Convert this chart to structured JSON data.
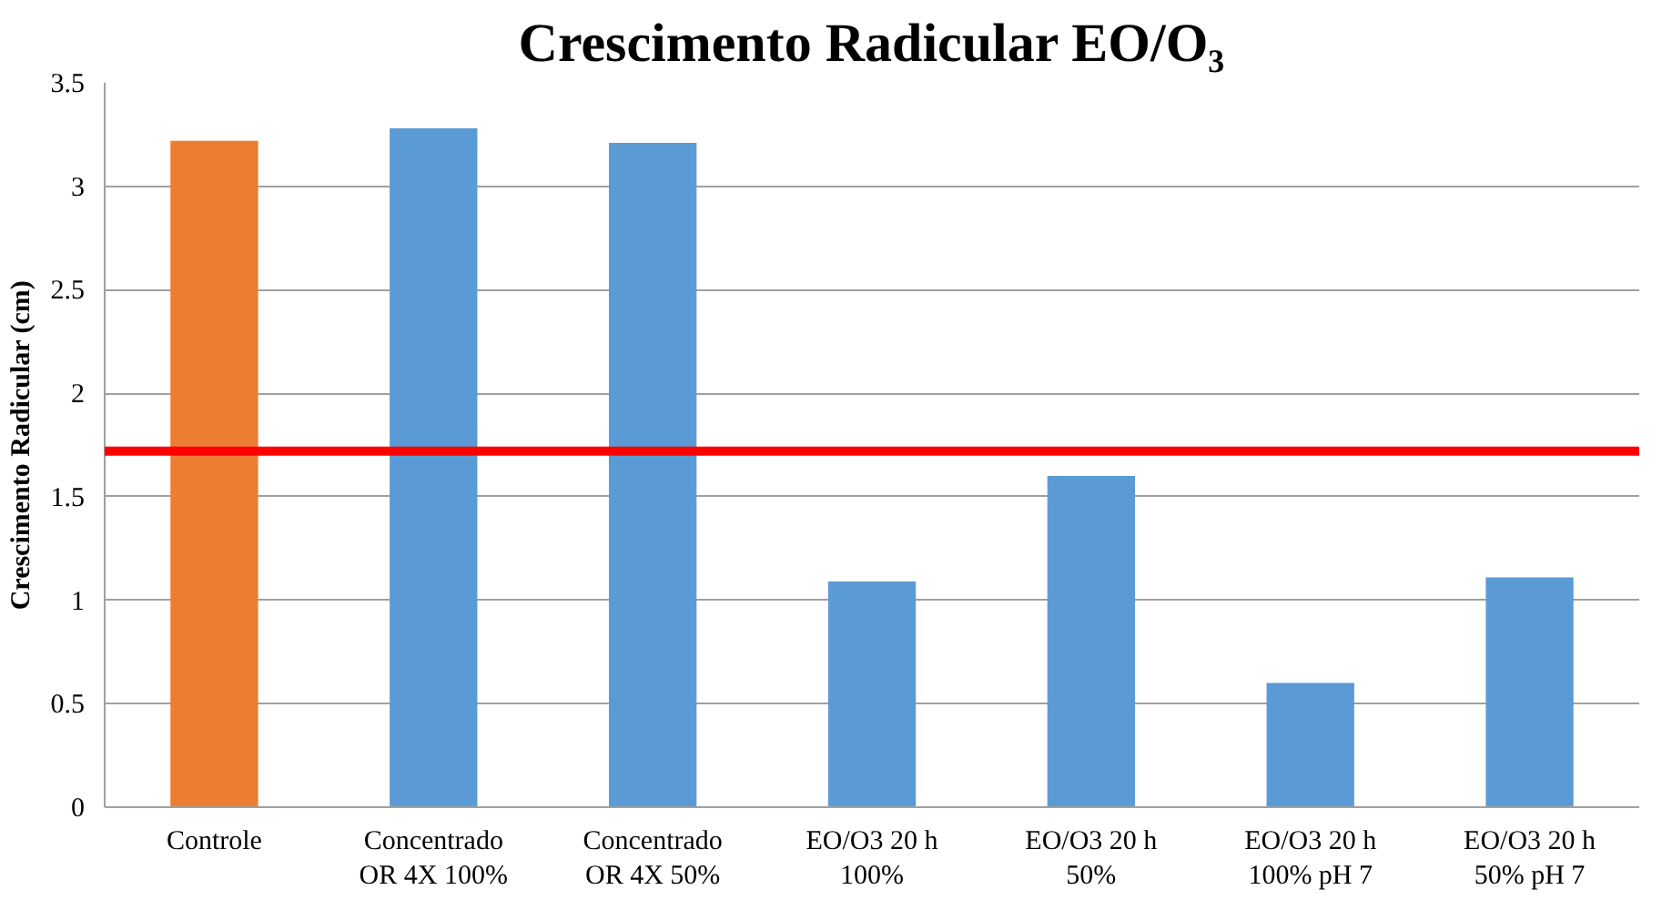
{
  "chart_data": {
    "type": "bar",
    "title": "Crescimento Radicular EO/O₃",
    "ylabel": "Crescimento Radicular (cm)",
    "categories": [
      "Controle",
      "Concentrado\nOR 4X 100%",
      "Concentrado\nOR 4X 50%",
      "EO/O3 20 h\n100%",
      "EO/O3 20 h\n50%",
      "EO/O3 20 h\n100% pH 7",
      "EO/O3 20 h\n50% pH 7"
    ],
    "values": [
      3.22,
      3.28,
      3.21,
      1.09,
      1.6,
      0.6,
      1.11
    ],
    "colors": [
      "#ed7d31",
      "#5b9bd5",
      "#5b9bd5",
      "#5b9bd5",
      "#5b9bd5",
      "#5b9bd5",
      "#5b9bd5"
    ],
    "ylim": [
      0,
      3.5
    ],
    "yticks": [
      0,
      0.5,
      1,
      1.5,
      2,
      2.5,
      3,
      3.5
    ],
    "grid": "y",
    "ref_lines": [
      {
        "axis": "y",
        "value": 1.72,
        "color": "#ff0000"
      }
    ]
  }
}
